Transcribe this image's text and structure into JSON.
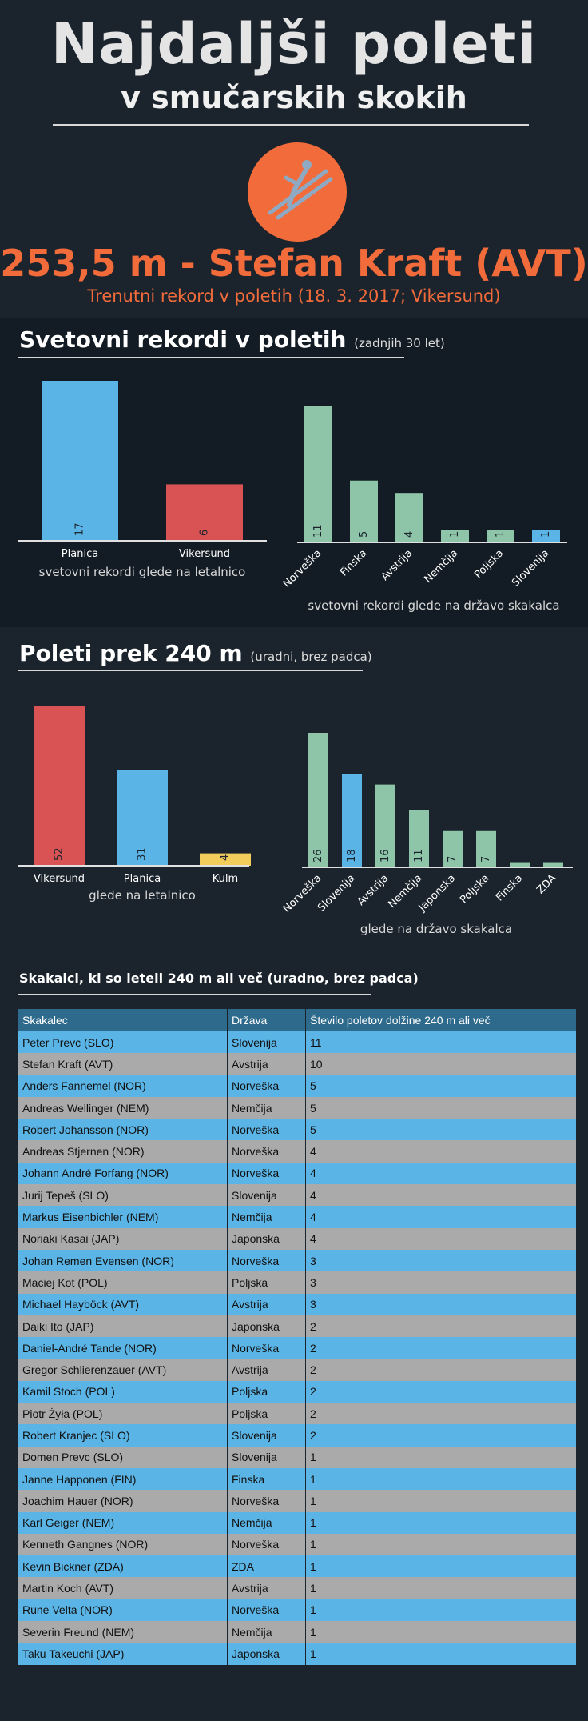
{
  "header": {
    "title": "Najdaljši poleti",
    "subtitle": "v smučarskih skokih",
    "icon": "ski-jumper-icon",
    "accent_color": "#f26b3a",
    "record": "253,5 m - Stefan Kraft (AVT)",
    "record_caption": "Trenutni rekord v poletih (18. 3. 2017; Vikersund)"
  },
  "section1": {
    "title": "Svetovni rekordi v poletih",
    "note": "(zadnjih 30 let)"
  },
  "section2": {
    "title": "Poleti prek 240 m",
    "note": "(uradni, brez padca)"
  },
  "chart_data": [
    {
      "type": "bar",
      "title": "",
      "xlabel": "svetovni rekordi glede na letalnico",
      "categories": [
        "Planica",
        "Vikersund"
      ],
      "values": [
        17,
        6
      ],
      "colors": [
        "#5ab4e5",
        "#d95355"
      ],
      "ylim": [
        0,
        17
      ]
    },
    {
      "type": "bar",
      "title": "",
      "xlabel": "svetovni rekordi glede na državo skakalca",
      "categories": [
        "Norveška",
        "Finska",
        "Avstrija",
        "Nemčija",
        "Poljska",
        "Slovenija"
      ],
      "values": [
        11,
        5,
        4,
        1,
        1,
        1
      ],
      "colors": [
        "#8ec5a9",
        "#8ec5a9",
        "#8ec5a9",
        "#8ec5a9",
        "#8ec5a9",
        "#5ab4e5"
      ],
      "ylim": [
        0,
        11
      ]
    },
    {
      "type": "bar",
      "title": "",
      "xlabel": "glede na letalnico",
      "categories": [
        "Vikersund",
        "Planica",
        "Kulm"
      ],
      "values": [
        52,
        31,
        4
      ],
      "colors": [
        "#d95355",
        "#5ab4e5",
        "#f2cd5c"
      ],
      "ylim": [
        0,
        52
      ]
    },
    {
      "type": "bar",
      "title": "",
      "xlabel": "glede na državo skakalca",
      "categories": [
        "Norveška",
        "Slovenija",
        "Avstrija",
        "Nemčija",
        "Japonska",
        "Poljska",
        "Finska",
        "ZDA"
      ],
      "values": [
        26,
        18,
        16,
        11,
        7,
        7,
        1,
        1
      ],
      "colors": [
        "#8ec5a9",
        "#5ab4e5",
        "#8ec5a9",
        "#8ec5a9",
        "#8ec5a9",
        "#8ec5a9",
        "#8ec5a9",
        "#8ec5a9"
      ],
      "ylim": [
        0,
        26
      ]
    }
  ],
  "table": {
    "title": "Skakalci, ki so leteli 240 m ali več (uradno, brez padca)",
    "headers": [
      "Skakalec",
      "Država",
      "Število poletov dolžine 240 m ali več"
    ],
    "rows": [
      [
        "Peter Prevc (SLO)",
        "Slovenija",
        "11"
      ],
      [
        "Stefan Kraft (AVT)",
        "Avstrija",
        "10"
      ],
      [
        "Anders Fannemel (NOR)",
        "Norveška",
        "5"
      ],
      [
        "Andreas Wellinger (NEM)",
        "Nemčija",
        "5"
      ],
      [
        "Robert Johansson (NOR)",
        "Norveška",
        "5"
      ],
      [
        "Andreas Stjernen (NOR)",
        "Norveška",
        "4"
      ],
      [
        "Johann André Forfang (NOR)",
        "Norveška",
        "4"
      ],
      [
        "Jurij Tepeš (SLO)",
        "Slovenija",
        "4"
      ],
      [
        "Markus Eisenbichler (NEM)",
        "Nemčija",
        "4"
      ],
      [
        "Noriaki Kasai (JAP)",
        "Japonska",
        "4"
      ],
      [
        "Johan Remen Evensen (NOR)",
        "Norveška",
        "3"
      ],
      [
        "Maciej Kot (POL)",
        "Poljska",
        "3"
      ],
      [
        "Michael Hayböck (AVT)",
        "Avstrija",
        "3"
      ],
      [
        "Daiki Ito (JAP)",
        "Japonska",
        "2"
      ],
      [
        "Daniel-André Tande (NOR)",
        "Norveška",
        "2"
      ],
      [
        "Gregor Schlierenzauer (AVT)",
        "Avstrija",
        "2"
      ],
      [
        "Kamil Stoch (POL)",
        "Poljska",
        "2"
      ],
      [
        "Piotr Żyła (POL)",
        "Poljska",
        "2"
      ],
      [
        "Robert Kranjec (SLO)",
        "Slovenija",
        "2"
      ],
      [
        "Domen Prevc (SLO)",
        "Slovenija",
        "1"
      ],
      [
        "Janne Happonen (FIN)",
        "Finska",
        "1"
      ],
      [
        "Joachim Hauer (NOR)",
        "Norveška",
        "1"
      ],
      [
        "Karl Geiger (NEM)",
        "Nemčija",
        "1"
      ],
      [
        "Kenneth Gangnes (NOR)",
        "Norveška",
        "1"
      ],
      [
        "Kevin Bickner (ZDA)",
        "ZDA",
        "1"
      ],
      [
        "Martin Koch (AVT)",
        "Avstrija",
        "1"
      ],
      [
        "Rune Velta (NOR)",
        "Norveška",
        "1"
      ],
      [
        "Severin Freund (NEM)",
        "Nemčija",
        "1"
      ],
      [
        "Taku Takeuchi (JAP)",
        "Japonska",
        "1"
      ]
    ]
  }
}
